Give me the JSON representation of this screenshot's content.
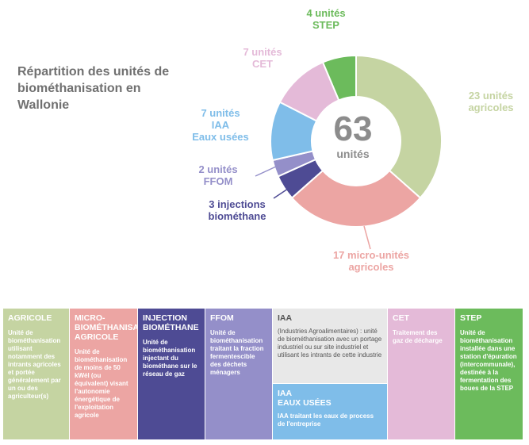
{
  "title": "Répartition des unités de biométhanisation en Wallonie",
  "colors": {
    "agricole": "#c5d4a2",
    "micro": "#eca5a3",
    "injection": "#4e4b94",
    "ffom": "#948fc9",
    "iaa": "#7fbde9",
    "cet": "#e4bad8",
    "step": "#6cbb5c",
    "iaa_box": "#e8e8e8"
  },
  "chart_data": {
    "type": "pie",
    "total": 63,
    "total_label": "unités",
    "slices": [
      {
        "id": "agricole",
        "value": 23,
        "label_line1": "23 unités",
        "label_line2": "agricoles"
      },
      {
        "id": "micro",
        "value": 17,
        "label_line1": "17 micro-unités",
        "label_line2": "agricoles"
      },
      {
        "id": "injection",
        "value": 3,
        "label_line1": "3 injections",
        "label_line2": "biométhane"
      },
      {
        "id": "ffom",
        "value": 2,
        "label_line1": "2 unités",
        "label_line2": "FFOM"
      },
      {
        "id": "iaa",
        "value": 7,
        "label_line1": "7 unités",
        "label_line2": "IAA",
        "label_line3": "Eaux usées"
      },
      {
        "id": "cet",
        "value": 7,
        "label_line1": "7 unités",
        "label_line2": "CET"
      },
      {
        "id": "step",
        "value": 4,
        "label_line1": "4 unités",
        "label_line2": "STEP"
      }
    ]
  },
  "legend": {
    "agricole": {
      "title": "AGRICOLE",
      "text": "Unité de biométhanisation utilisant notamment des intrants agricoles et portée généralement par un ou des agriculteur(s)"
    },
    "micro": {
      "title": "MICRO-BIOMÉTHANISATION AGRICOLE",
      "text": "Unité de biométhanisation de moins de 50 kWél (ou équivalent) visant l'autonomie énergétique de l'exploitation agricole"
    },
    "injection": {
      "title": "INJECTION BIOMÉTHANE",
      "text": "Unité de biométhanisation injectant du biométhane sur le réseau de gaz"
    },
    "ffom": {
      "title": "FFOM",
      "text": "Unité de biométhanisation traitant la fraction fermentescible des déchets ménagers"
    },
    "iaa": {
      "title": "IAA",
      "text": "(Industries Agroalimentaires) : unité de biométhanisation avec un portage industriel ou sur site industriel et utilisant les intrants de cette industrie"
    },
    "iaa_eaux": {
      "title_line1": "IAA",
      "title_line2": "EAUX USÉES",
      "text": "IAA traitant les eaux de process de l'entreprise"
    },
    "cet": {
      "title": "CET",
      "text": "Traitement des gaz de décharge"
    },
    "step": {
      "title": "STEP",
      "text": "Unité de biométhanisation installée dans une station d'épuration (intercommunale), destinée à la fermentation des boues de la STEP"
    }
  }
}
